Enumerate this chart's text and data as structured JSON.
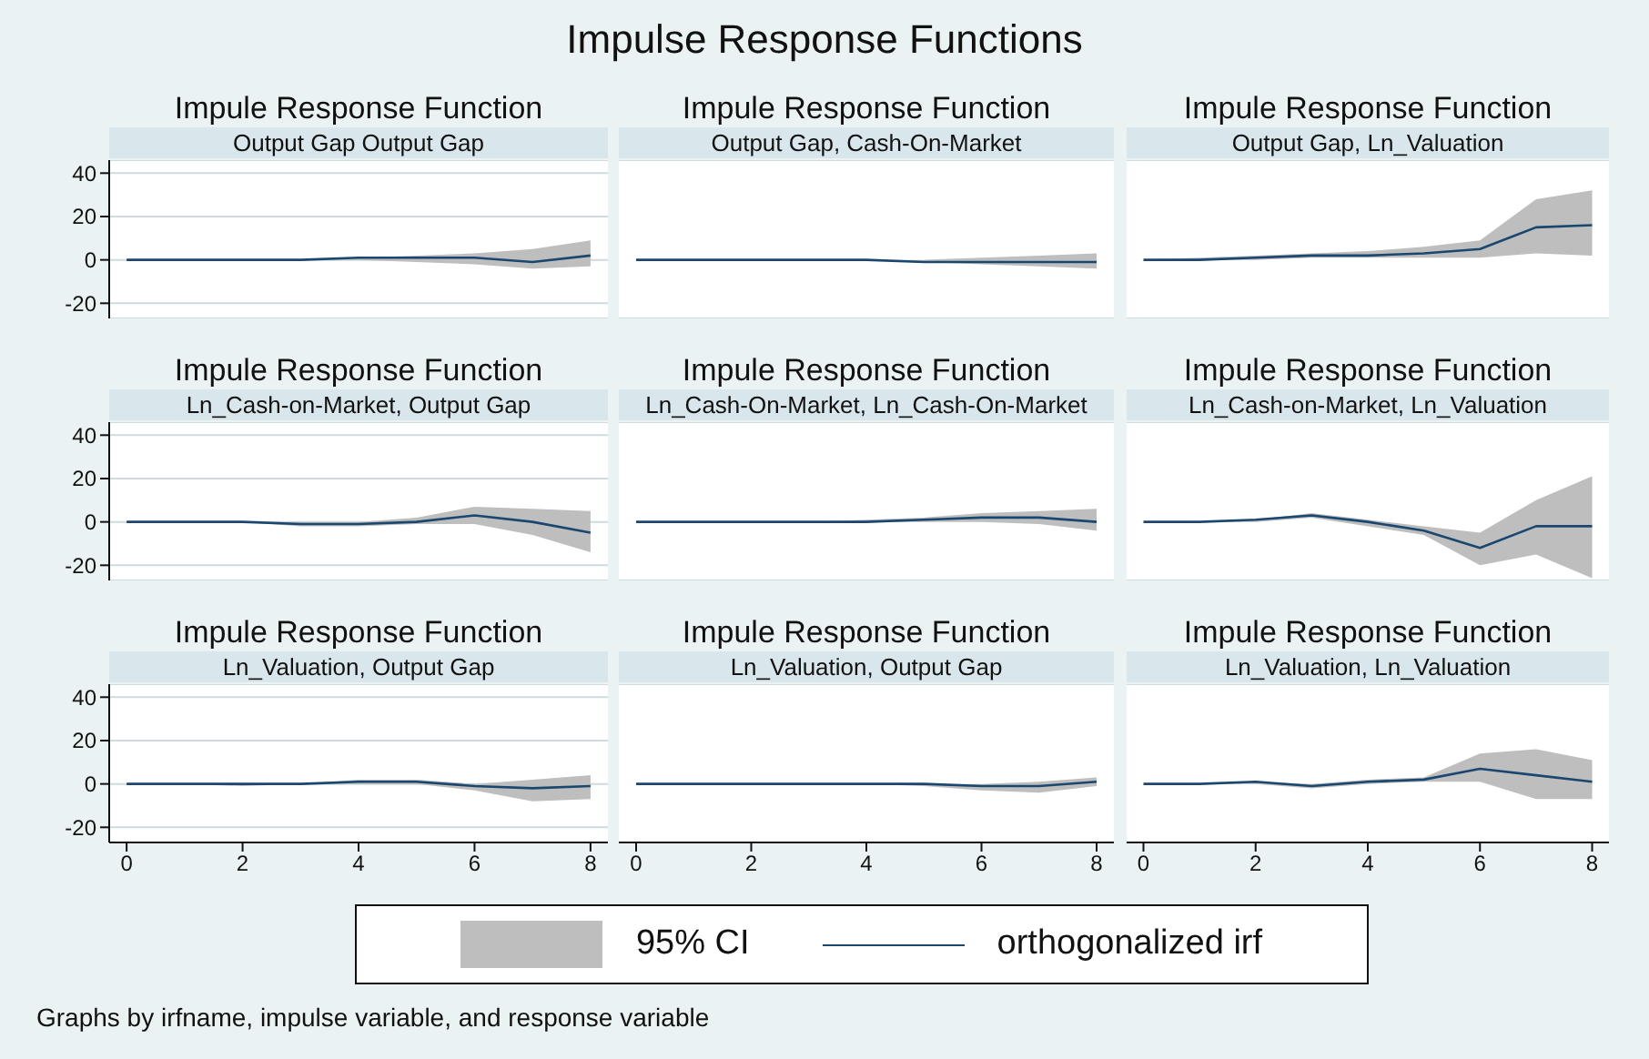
{
  "chart_data": [
    {
      "type": "line",
      "title": "Impule Response Function",
      "subtitle": "Output Gap Output Gap",
      "annotations": [
        "Impulse Response Functions",
        "95% CI",
        "Graphs by irfname, impulse variable, and response variable"
      ],
      "x": [
        0,
        1,
        2,
        3,
        4,
        5,
        6,
        7,
        8
      ],
      "xlim": [
        -0.3,
        8.3
      ],
      "xticks": [
        0,
        2,
        4,
        6,
        8
      ],
      "ylim": [
        -27,
        46
      ],
      "yticks": [
        -20,
        0,
        20,
        40
      ],
      "grid": "y",
      "legend": "bottom",
      "tick_labels": "y",
      "series": [
        {
          "name": "orthogonalized irf",
          "color": "#1a476f",
          "values": [
            0,
            0,
            0,
            0,
            1,
            1,
            1,
            -1,
            2
          ],
          "lower": [
            0,
            0,
            0,
            0,
            0,
            -1,
            -2,
            -4,
            -3
          ],
          "upper": [
            0,
            0,
            0,
            0,
            1,
            2,
            3,
            5,
            9
          ]
        }
      ]
    },
    {
      "type": "line",
      "title": "Impule Response Function",
      "subtitle": "Output Gap, Cash-On-Market",
      "x": [
        0,
        1,
        2,
        3,
        4,
        5,
        6,
        7,
        8
      ],
      "xlim": [
        -0.3,
        8.3
      ],
      "xticks": [
        0,
        2,
        4,
        6,
        8
      ],
      "ylim": [
        -27,
        46
      ],
      "yticks": [
        -20,
        0,
        20,
        40
      ],
      "grid": "y",
      "tick_labels": false,
      "series": [
        {
          "color": "#1a476f",
          "values": [
            0,
            0,
            0,
            0,
            0,
            -1,
            -1,
            -1,
            -1
          ],
          "lower": [
            0,
            0,
            0,
            0,
            0,
            -1,
            -2,
            -3,
            -4
          ],
          "upper": [
            0,
            0,
            0,
            0,
            0,
            0,
            1,
            2,
            3
          ]
        }
      ]
    },
    {
      "type": "line",
      "title": "Impule Response Function",
      "subtitle": "Output Gap, Ln_Valuation",
      "x": [
        0,
        1,
        2,
        3,
        4,
        5,
        6,
        7,
        8
      ],
      "xlim": [
        -0.3,
        8.3
      ],
      "xticks": [
        0,
        2,
        4,
        6,
        8
      ],
      "ylim": [
        -27,
        46
      ],
      "yticks": [
        -20,
        0,
        20,
        40
      ],
      "grid": "y",
      "tick_labels": false,
      "series": [
        {
          "color": "#1a476f",
          "values": [
            0,
            0,
            1,
            2,
            2,
            3,
            5,
            15,
            16
          ],
          "lower": [
            0,
            0,
            0,
            1,
            1,
            1,
            1,
            3,
            2
          ],
          "upper": [
            0,
            1,
            2,
            3,
            4,
            6,
            9,
            28,
            32
          ]
        }
      ]
    },
    {
      "type": "line",
      "title": "Impule Response Function",
      "subtitle": "Ln_Cash-on-Market,  Output Gap",
      "x": [
        0,
        1,
        2,
        3,
        4,
        5,
        6,
        7,
        8
      ],
      "xlim": [
        -0.3,
        8.3
      ],
      "xticks": [
        0,
        2,
        4,
        6,
        8
      ],
      "ylim": [
        -27,
        46
      ],
      "yticks": [
        -20,
        0,
        20,
        40
      ],
      "grid": "y",
      "tick_labels": "y",
      "series": [
        {
          "color": "#1a476f",
          "values": [
            0,
            0,
            0,
            -1,
            -1,
            0,
            3,
            0,
            -5
          ],
          "lower": [
            0,
            0,
            0,
            -2,
            -2,
            -1,
            -1,
            -6,
            -14
          ],
          "upper": [
            0,
            0,
            0,
            0,
            0,
            2,
            7,
            6,
            5
          ]
        }
      ]
    },
    {
      "type": "line",
      "title": "Impule Response Function",
      "subtitle": "Ln_Cash-On-Market, Ln_Cash-On-Market",
      "x": [
        0,
        1,
        2,
        3,
        4,
        5,
        6,
        7,
        8
      ],
      "xlim": [
        -0.3,
        8.3
      ],
      "xticks": [
        0,
        2,
        4,
        6,
        8
      ],
      "ylim": [
        -27,
        46
      ],
      "yticks": [
        -20,
        0,
        20,
        40
      ],
      "grid": "y",
      "tick_labels": false,
      "series": [
        {
          "color": "#1a476f",
          "values": [
            0,
            0,
            0,
            0,
            0,
            1,
            2,
            2,
            0
          ],
          "lower": [
            0,
            0,
            0,
            0,
            0,
            0,
            0,
            -1,
            -4
          ],
          "upper": [
            0,
            0,
            0,
            0,
            1,
            2,
            4,
            5,
            6
          ]
        }
      ]
    },
    {
      "type": "line",
      "title": "Impule Response Function",
      "subtitle": "Ln_Cash-on-Market, Ln_Valuation",
      "x": [
        0,
        1,
        2,
        3,
        4,
        5,
        6,
        7,
        8
      ],
      "xlim": [
        -0.3,
        8.3
      ],
      "xticks": [
        0,
        2,
        4,
        6,
        8
      ],
      "ylim": [
        -27,
        46
      ],
      "yticks": [
        -20,
        0,
        20,
        40
      ],
      "grid": "y",
      "tick_labels": false,
      "series": [
        {
          "color": "#1a476f",
          "values": [
            0,
            0,
            1,
            3,
            0,
            -4,
            -12,
            -2,
            -2
          ],
          "lower": [
            0,
            0,
            0,
            2,
            -2,
            -6,
            -20,
            -15,
            -26
          ],
          "upper": [
            0,
            0,
            1,
            4,
            1,
            -2,
            -5,
            10,
            21
          ]
        }
      ]
    },
    {
      "type": "line",
      "title": "Impule Response Function",
      "subtitle": "Ln_Valuation, Output Gap",
      "x": [
        0,
        1,
        2,
        3,
        4,
        5,
        6,
        7,
        8
      ],
      "xlim": [
        -0.3,
        8.3
      ],
      "xticks": [
        0,
        2,
        4,
        6,
        8
      ],
      "ylim": [
        -27,
        46
      ],
      "yticks": [
        -20,
        0,
        20,
        40
      ],
      "grid": "y",
      "series": [
        {
          "color": "#1a476f",
          "values": [
            0,
            0,
            0,
            0,
            1,
            1,
            -1,
            -2,
            -1
          ],
          "lower": [
            0,
            0,
            -1,
            0,
            0,
            0,
            -3,
            -8,
            -7
          ],
          "upper": [
            0,
            0,
            0,
            0,
            2,
            2,
            0,
            2,
            4
          ]
        }
      ]
    },
    {
      "type": "line",
      "title": "Impule Response Function",
      "subtitle": "Ln_Valuation, Output Gap",
      "x": [
        0,
        1,
        2,
        3,
        4,
        5,
        6,
        7,
        8
      ],
      "xlim": [
        -0.3,
        8.3
      ],
      "xticks": [
        0,
        2,
        4,
        6,
        8
      ],
      "ylim": [
        -27,
        46
      ],
      "yticks": [
        -20,
        0,
        20,
        40
      ],
      "grid": "y",
      "tick_labels": "x",
      "series": [
        {
          "color": "#1a476f",
          "values": [
            0,
            0,
            0,
            0,
            0,
            0,
            -1,
            -1,
            1
          ],
          "lower": [
            0,
            0,
            0,
            0,
            0,
            -1,
            -3,
            -4,
            -1
          ],
          "upper": [
            0,
            0,
            0,
            0,
            0,
            0,
            0,
            1,
            3
          ]
        }
      ]
    },
    {
      "type": "line",
      "title": "Impule Response Function",
      "subtitle": "Ln_Valuation, Ln_Valuation",
      "x": [
        0,
        1,
        2,
        3,
        4,
        5,
        6,
        7,
        8
      ],
      "xlim": [
        -0.3,
        8.3
      ],
      "xticks": [
        0,
        2,
        4,
        6,
        8
      ],
      "ylim": [
        -27,
        46
      ],
      "yticks": [
        -20,
        0,
        20,
        40
      ],
      "grid": "y",
      "tick_labels": "x",
      "series": [
        {
          "color": "#1a476f",
          "values": [
            0,
            0,
            1,
            -1,
            1,
            2,
            7,
            4,
            1
          ],
          "lower": [
            0,
            0,
            0,
            -2,
            0,
            1,
            1,
            -7,
            -7
          ],
          "upper": [
            0,
            0,
            1,
            0,
            2,
            3,
            14,
            16,
            11
          ]
        }
      ]
    }
  ]
}
